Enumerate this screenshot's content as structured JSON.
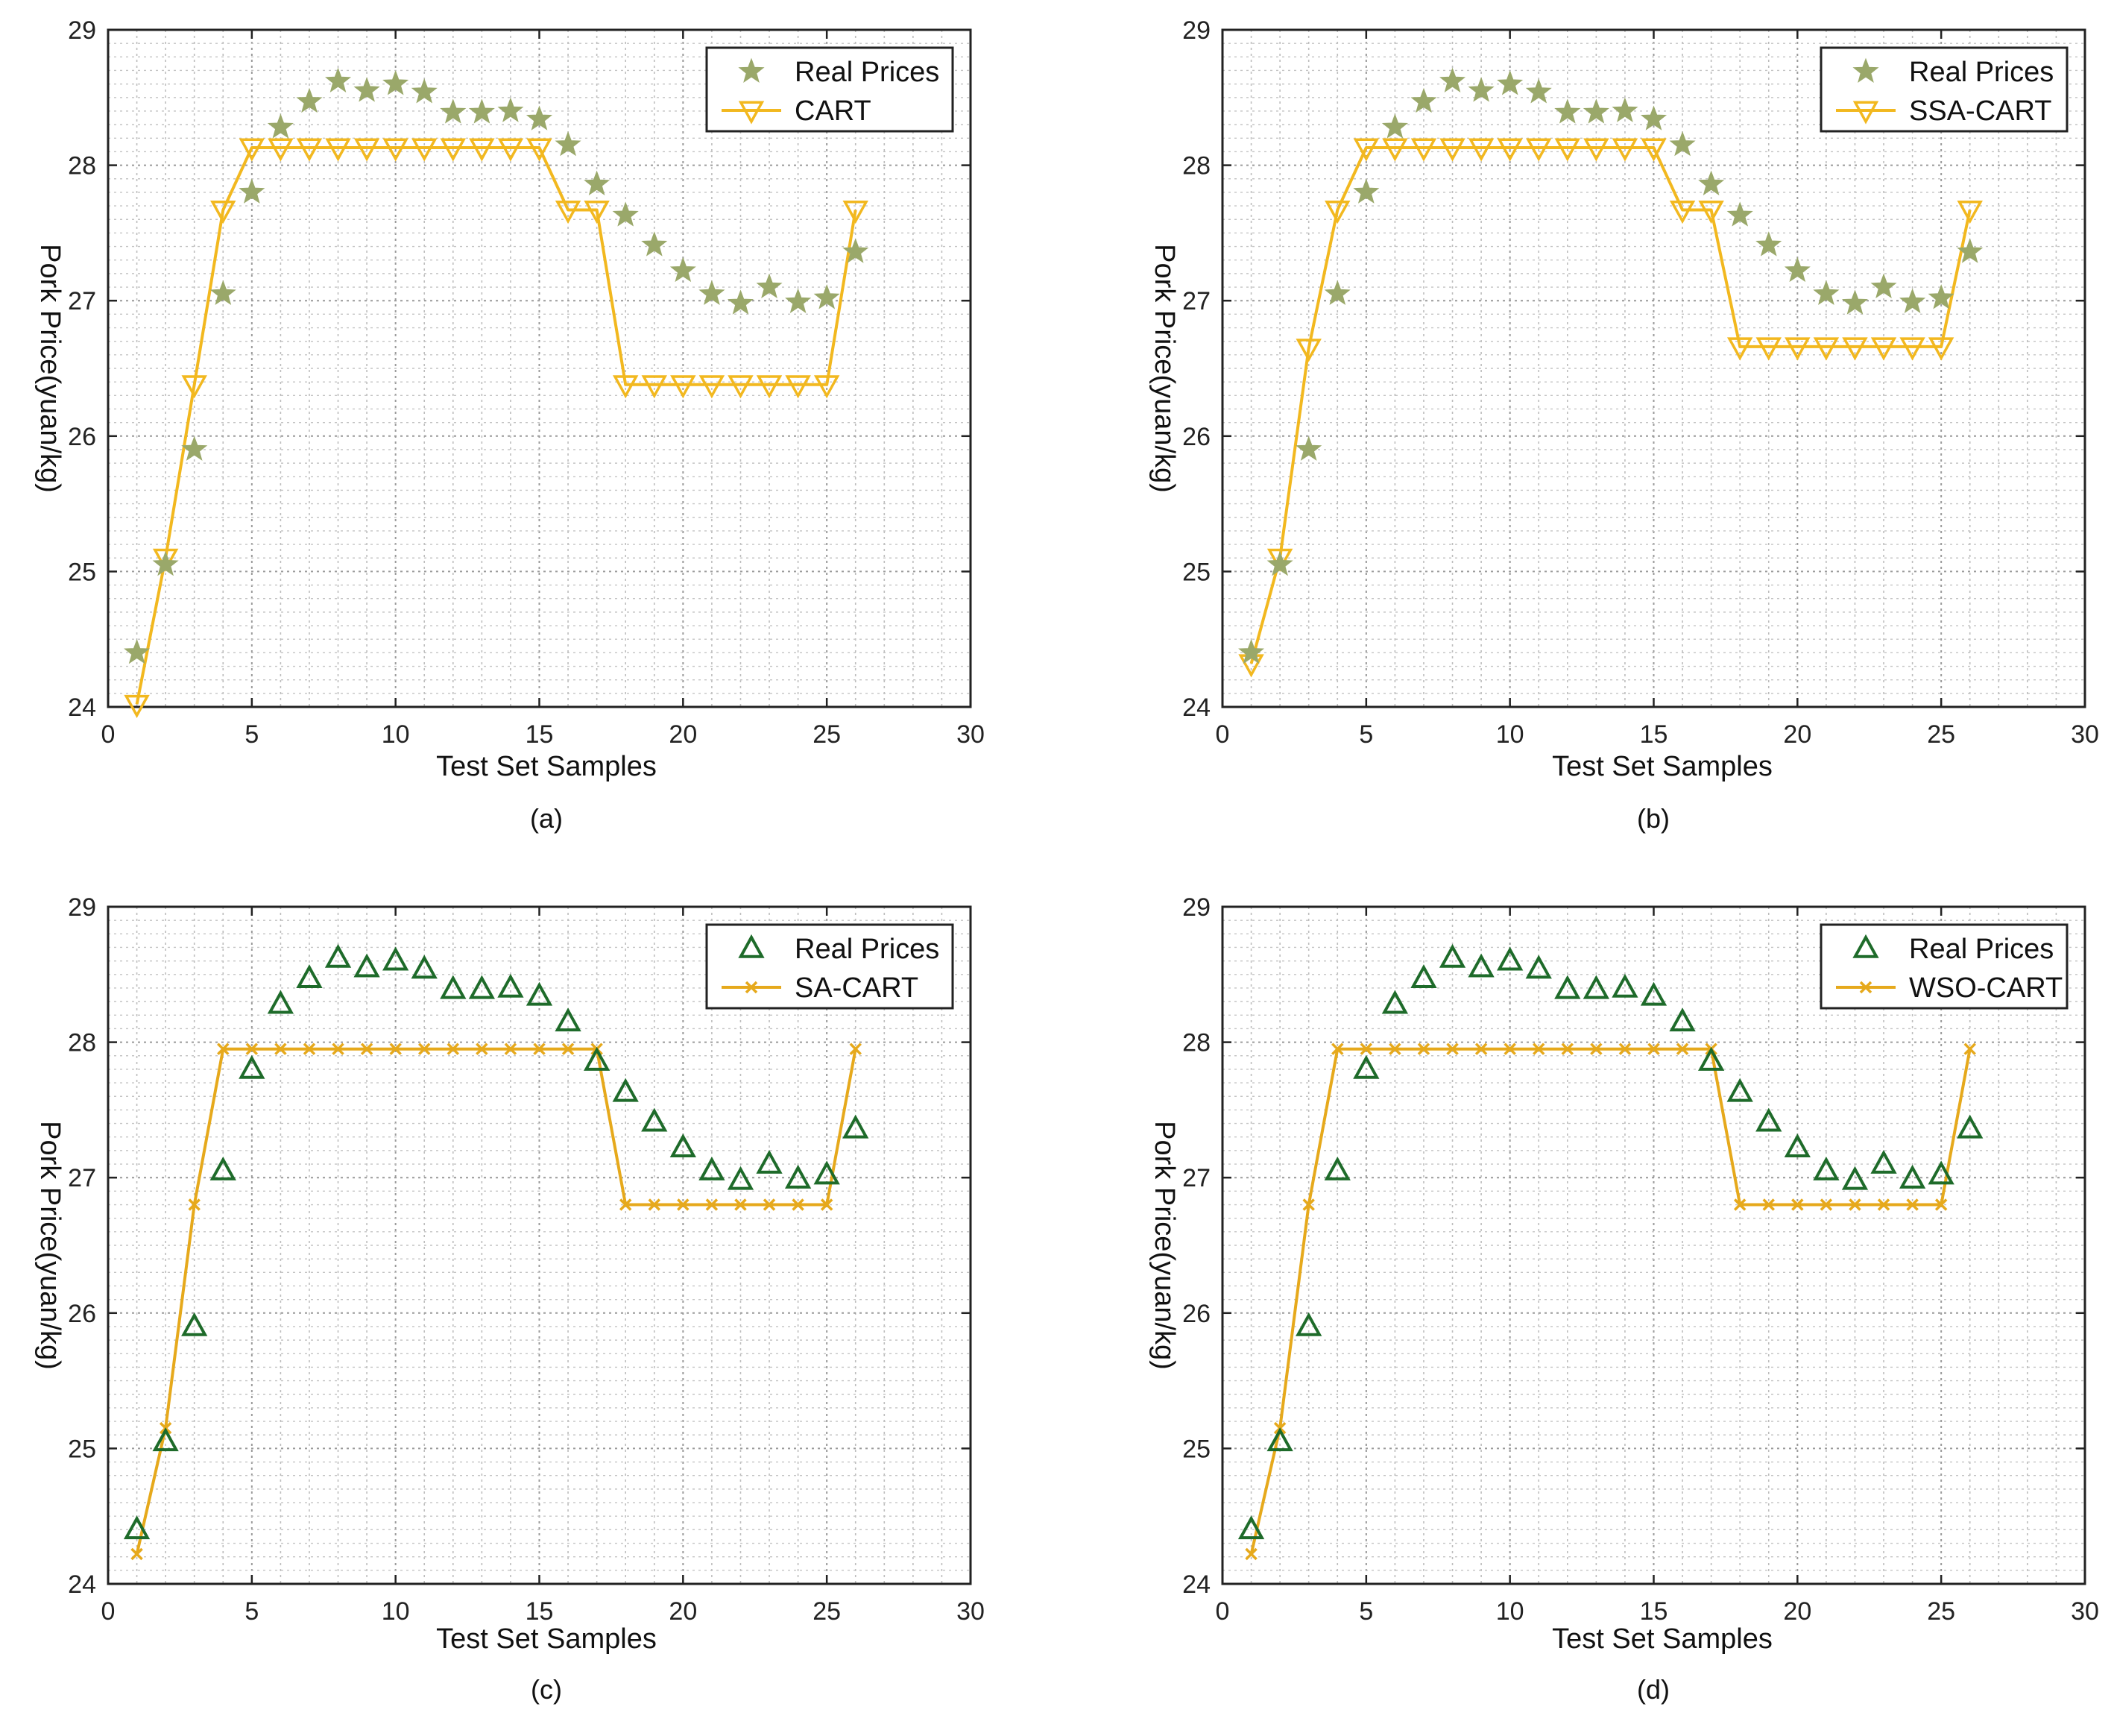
{
  "chart_data": [
    {
      "type": "line",
      "caption": "(a)",
      "xlabel": "Test Set Samples",
      "ylabel": "Pork Price(yuan/kg)",
      "xlim": [
        0,
        30
      ],
      "ylim": [
        24,
        29
      ],
      "xticks": [
        0,
        5,
        10,
        15,
        20,
        25,
        30
      ],
      "yticks": [
        24,
        25,
        26,
        27,
        28,
        29
      ],
      "grid": true,
      "legend_position": "top-right",
      "colors": {
        "real": "#9aa86a",
        "pred": "#f2b81f"
      },
      "markers": {
        "real": "star",
        "pred": "triangle-down"
      },
      "series": [
        {
          "name": "Real Prices",
          "style": "markers",
          "x": [
            1,
            2,
            3,
            4,
            5,
            6,
            7,
            8,
            9,
            10,
            11,
            12,
            13,
            14,
            15,
            16,
            17,
            18,
            19,
            20,
            21,
            22,
            23,
            24,
            25,
            26
          ],
          "y": [
            24.4,
            25.05,
            25.9,
            27.05,
            27.8,
            28.28,
            28.47,
            28.62,
            28.55,
            28.6,
            28.54,
            28.39,
            28.39,
            28.4,
            28.34,
            28.15,
            27.86,
            27.63,
            27.41,
            27.22,
            27.05,
            26.98,
            27.1,
            26.99,
            27.02,
            27.36
          ]
        },
        {
          "name": "CART",
          "style": "line",
          "x": [
            1,
            2,
            3,
            4,
            5,
            6,
            7,
            8,
            9,
            10,
            11,
            12,
            13,
            14,
            15,
            16,
            17,
            18,
            19,
            20,
            21,
            22,
            23,
            24,
            25,
            26
          ],
          "y": [
            24.02,
            25.1,
            26.38,
            27.67,
            28.13,
            28.13,
            28.13,
            28.13,
            28.13,
            28.13,
            28.13,
            28.13,
            28.13,
            28.13,
            28.13,
            27.67,
            27.67,
            26.38,
            26.38,
            26.38,
            26.38,
            26.38,
            26.38,
            26.38,
            26.38,
            27.67
          ]
        }
      ]
    },
    {
      "type": "line",
      "caption": "(b)",
      "xlabel": "Test Set Samples",
      "ylabel": "Pork Price(yuan/kg)",
      "xlim": [
        0,
        30
      ],
      "ylim": [
        24,
        29
      ],
      "xticks": [
        0,
        5,
        10,
        15,
        20,
        25,
        30
      ],
      "yticks": [
        24,
        25,
        26,
        27,
        28,
        29
      ],
      "grid": true,
      "legend_position": "top-right",
      "colors": {
        "real": "#9aa86a",
        "pred": "#f2b81f"
      },
      "markers": {
        "real": "star",
        "pred": "triangle-down"
      },
      "series": [
        {
          "name": "Real Prices",
          "style": "markers",
          "x": [
            1,
            2,
            3,
            4,
            5,
            6,
            7,
            8,
            9,
            10,
            11,
            12,
            13,
            14,
            15,
            16,
            17,
            18,
            19,
            20,
            21,
            22,
            23,
            24,
            25,
            26
          ],
          "y": [
            24.4,
            25.05,
            25.9,
            27.05,
            27.8,
            28.28,
            28.47,
            28.62,
            28.55,
            28.6,
            28.54,
            28.39,
            28.39,
            28.4,
            28.34,
            28.15,
            27.86,
            27.63,
            27.41,
            27.22,
            27.05,
            26.98,
            27.1,
            26.99,
            27.02,
            27.36
          ]
        },
        {
          "name": "SSA-CART",
          "style": "line",
          "x": [
            1,
            2,
            3,
            4,
            5,
            6,
            7,
            8,
            9,
            10,
            11,
            12,
            13,
            14,
            15,
            16,
            17,
            18,
            19,
            20,
            21,
            22,
            23,
            24,
            25,
            26
          ],
          "y": [
            24.32,
            25.1,
            26.65,
            27.67,
            28.13,
            28.13,
            28.13,
            28.13,
            28.13,
            28.13,
            28.13,
            28.13,
            28.13,
            28.13,
            28.13,
            27.67,
            27.67,
            26.66,
            26.66,
            26.66,
            26.66,
            26.66,
            26.66,
            26.66,
            26.66,
            27.67
          ]
        }
      ]
    },
    {
      "type": "line",
      "caption": "(c)",
      "xlabel": "Test Set Samples",
      "ylabel": "Pork Price(yuan/kg)",
      "xlim": [
        0,
        30
      ],
      "ylim": [
        24,
        29
      ],
      "xticks": [
        0,
        5,
        10,
        15,
        20,
        25,
        30
      ],
      "yticks": [
        24,
        25,
        26,
        27,
        28,
        29
      ],
      "grid": true,
      "legend_position": "top-right",
      "colors": {
        "real": "#1e6b2a",
        "pred": "#e6a91c"
      },
      "markers": {
        "real": "triangle-up",
        "pred": "x"
      },
      "series": [
        {
          "name": "Real Prices",
          "style": "markers",
          "x": [
            1,
            2,
            3,
            4,
            5,
            6,
            7,
            8,
            9,
            10,
            11,
            12,
            13,
            14,
            15,
            16,
            17,
            18,
            19,
            20,
            21,
            22,
            23,
            24,
            25,
            26
          ],
          "y": [
            24.4,
            25.05,
            25.9,
            27.05,
            27.8,
            28.28,
            28.47,
            28.62,
            28.55,
            28.6,
            28.54,
            28.39,
            28.39,
            28.4,
            28.34,
            28.15,
            27.86,
            27.63,
            27.41,
            27.22,
            27.05,
            26.98,
            27.1,
            26.99,
            27.02,
            27.36
          ]
        },
        {
          "name": "SA-CART",
          "style": "line",
          "x": [
            1,
            2,
            3,
            4,
            5,
            6,
            7,
            8,
            9,
            10,
            11,
            12,
            13,
            14,
            15,
            16,
            17,
            18,
            19,
            20,
            21,
            22,
            23,
            24,
            25,
            26
          ],
          "y": [
            24.22,
            25.15,
            26.8,
            27.95,
            27.95,
            27.95,
            27.95,
            27.95,
            27.95,
            27.95,
            27.95,
            27.95,
            27.95,
            27.95,
            27.95,
            27.95,
            27.95,
            26.8,
            26.8,
            26.8,
            26.8,
            26.8,
            26.8,
            26.8,
            26.8,
            27.95
          ]
        }
      ]
    },
    {
      "type": "line",
      "caption": "(d)",
      "xlabel": "Test Set Samples",
      "ylabel": "Pork Price(yuan/kg)",
      "xlim": [
        0,
        30
      ],
      "ylim": [
        24,
        29
      ],
      "xticks": [
        0,
        5,
        10,
        15,
        20,
        25,
        30
      ],
      "yticks": [
        24,
        25,
        26,
        27,
        28,
        29
      ],
      "grid": true,
      "legend_position": "top-right",
      "colors": {
        "real": "#1e6b2a",
        "pred": "#e6a91c"
      },
      "markers": {
        "real": "triangle-up",
        "pred": "x"
      },
      "series": [
        {
          "name": "Real Prices",
          "style": "markers",
          "x": [
            1,
            2,
            3,
            4,
            5,
            6,
            7,
            8,
            9,
            10,
            11,
            12,
            13,
            14,
            15,
            16,
            17,
            18,
            19,
            20,
            21,
            22,
            23,
            24,
            25,
            26
          ],
          "y": [
            24.4,
            25.05,
            25.9,
            27.05,
            27.8,
            28.28,
            28.47,
            28.62,
            28.55,
            28.6,
            28.54,
            28.39,
            28.39,
            28.4,
            28.34,
            28.15,
            27.86,
            27.63,
            27.41,
            27.22,
            27.05,
            26.98,
            27.1,
            26.99,
            27.02,
            27.36
          ]
        },
        {
          "name": "WSO-CART",
          "style": "line",
          "x": [
            1,
            2,
            3,
            4,
            5,
            6,
            7,
            8,
            9,
            10,
            11,
            12,
            13,
            14,
            15,
            16,
            17,
            18,
            19,
            20,
            21,
            22,
            23,
            24,
            25,
            26
          ],
          "y": [
            24.22,
            25.15,
            26.8,
            27.95,
            27.95,
            27.95,
            27.95,
            27.95,
            27.95,
            27.95,
            27.95,
            27.95,
            27.95,
            27.95,
            27.95,
            27.95,
            27.95,
            26.8,
            26.8,
            26.8,
            26.8,
            26.8,
            26.8,
            26.8,
            26.8,
            27.95
          ]
        }
      ]
    }
  ]
}
